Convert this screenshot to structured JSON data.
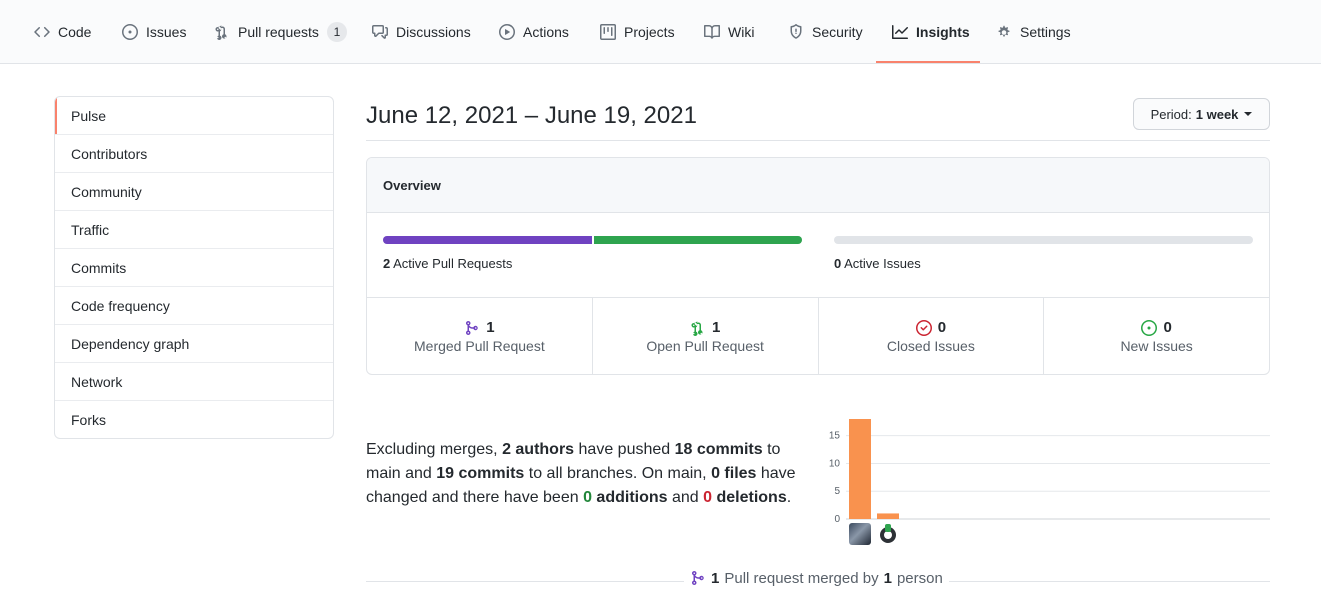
{
  "nav": {
    "tabs": [
      {
        "label": "Code",
        "icon": "code-icon"
      },
      {
        "label": "Issues",
        "icon": "issue-opened-icon"
      },
      {
        "label": "Pull requests",
        "icon": "git-pull-request-icon",
        "counter": "1"
      },
      {
        "label": "Discussions",
        "icon": "comment-discussion-icon"
      },
      {
        "label": "Actions",
        "icon": "play-icon"
      },
      {
        "label": "Projects",
        "icon": "project-icon"
      },
      {
        "label": "Wiki",
        "icon": "book-icon"
      },
      {
        "label": "Security",
        "icon": "shield-icon"
      },
      {
        "label": "Insights",
        "icon": "graph-icon",
        "selected": true
      },
      {
        "label": "Settings",
        "icon": "gear-icon"
      }
    ]
  },
  "sidebar": {
    "items": [
      {
        "label": "Pulse",
        "selected": true
      },
      {
        "label": "Contributors"
      },
      {
        "label": "Community"
      },
      {
        "label": "Traffic"
      },
      {
        "label": "Commits"
      },
      {
        "label": "Code frequency"
      },
      {
        "label": "Dependency graph"
      },
      {
        "label": "Network"
      },
      {
        "label": "Forks"
      }
    ]
  },
  "header": {
    "date_range": "June 12, 2021 – June 19, 2021",
    "period_prefix": "Period:",
    "period_value": "1 week"
  },
  "overview": {
    "title": "Overview",
    "pull_requests": {
      "count": "2",
      "label": "Active Pull Requests",
      "merged_fraction": 0.5,
      "open_fraction": 0.5
    },
    "issues": {
      "count": "0",
      "label": "Active Issues"
    },
    "stats": [
      {
        "value": "1",
        "label": "Merged Pull Request",
        "icon": "git-merge-icon",
        "color": "#6f42c1"
      },
      {
        "value": "1",
        "label": "Open Pull Request",
        "icon": "git-pull-request-icon",
        "color": "#28a745"
      },
      {
        "value": "0",
        "label": "Closed Issues",
        "icon": "issue-closed-icon",
        "color": "#cb2431"
      },
      {
        "value": "0",
        "label": "New Issues",
        "icon": "issue-opened-icon",
        "color": "#28a745"
      }
    ]
  },
  "summary": {
    "t1": "Excluding merges, ",
    "authors": "2 authors",
    "t2": " have pushed ",
    "commits_main": "18 commits",
    "t3": " to main and ",
    "commits_all": "19 commits",
    "t4": " to all branches. On main, ",
    "files": "0 files",
    "t5": " have changed and there have been ",
    "additions_num": "0",
    "additions_word": " additions",
    "t6": " and ",
    "deletions_num": "0",
    "deletions_word": " deletions",
    "t7": "."
  },
  "chart_data": {
    "type": "bar",
    "categories": [
      "author-1",
      "author-2"
    ],
    "values": [
      18,
      1
    ],
    "y_ticks": [
      "0",
      "5",
      "10",
      "15"
    ],
    "ylim": [
      0,
      18
    ],
    "grid": true,
    "bar_color": "#f9924e"
  },
  "footer": {
    "count": "1",
    "t1": " Pull request merged by ",
    "people": "1",
    "t2": " person"
  },
  "colors": {
    "accent": "#f9826c",
    "merged": "#6f42c1",
    "open": "#28a745",
    "closed": "#cb2431"
  }
}
